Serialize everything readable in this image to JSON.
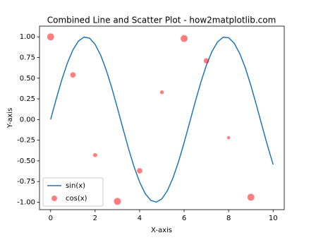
{
  "chart_data": {
    "type": "line-scatter",
    "title": "Combined Line and Scatter Plot - how2matplotlib.com",
    "x_label": "X-axis",
    "y_label": "Y-axis",
    "xlim": [
      -0.5,
      10.5
    ],
    "ylim": [
      -1.09,
      1.13
    ],
    "xticks": [
      0,
      2,
      4,
      6,
      8,
      10
    ],
    "yticks": [
      {
        "value": -1,
        "label": "-1.00"
      },
      {
        "value": -0.75,
        "label": "-0.75"
      },
      {
        "value": -0.5,
        "label": "-0.50"
      },
      {
        "value": -0.25,
        "label": "-0.25"
      },
      {
        "value": 0,
        "label": "0.00"
      },
      {
        "value": 0.25,
        "label": "0.25"
      },
      {
        "value": 0.5,
        "label": "0.50"
      },
      {
        "value": 0.75,
        "label": "0.75"
      },
      {
        "value": 1,
        "label": "1.00"
      }
    ],
    "legend": "lower left",
    "series": [
      {
        "name": "sin(x)",
        "type": "line",
        "color": "#1f77b4",
        "x": [
          0,
          0.25,
          0.5,
          0.75,
          1,
          1.25,
          1.5,
          1.75,
          2,
          2.25,
          2.5,
          2.75,
          3,
          3.25,
          3.5,
          3.75,
          4,
          4.25,
          4.5,
          4.75,
          5,
          5.25,
          5.5,
          5.75,
          6,
          6.25,
          6.5,
          6.75,
          7,
          7.25,
          7.5,
          7.75,
          8,
          8.25,
          8.5,
          8.75,
          9,
          9.25,
          9.5,
          9.75,
          10
        ],
        "values": [
          0,
          0.247,
          0.479,
          0.682,
          0.841,
          0.949,
          0.997,
          0.984,
          0.909,
          0.778,
          0.598,
          0.382,
          0.141,
          -0.108,
          -0.351,
          -0.572,
          -0.757,
          -0.895,
          -0.978,
          -0.999,
          -0.959,
          -0.859,
          -0.706,
          -0.508,
          -0.279,
          -0.033,
          0.215,
          0.45,
          0.657,
          0.823,
          0.938,
          0.995,
          0.989,
          0.923,
          0.798,
          0.625,
          0.412,
          0.173,
          -0.075,
          -0.319,
          -0.544
        ]
      },
      {
        "name": "cos(x)",
        "type": "scatter",
        "color": "#ff0000",
        "alpha": 0.5,
        "x": [
          0,
          1,
          2,
          3,
          4,
          5,
          6,
          7,
          8,
          9
        ],
        "values": [
          1.0,
          0.54,
          -0.43,
          -0.99,
          -0.62,
          0.33,
          0.98,
          0.71,
          -0.22,
          -0.94
        ],
        "sizes": [
          100,
          60,
          35,
          100,
          60,
          30,
          100,
          60,
          20,
          100
        ]
      }
    ]
  }
}
